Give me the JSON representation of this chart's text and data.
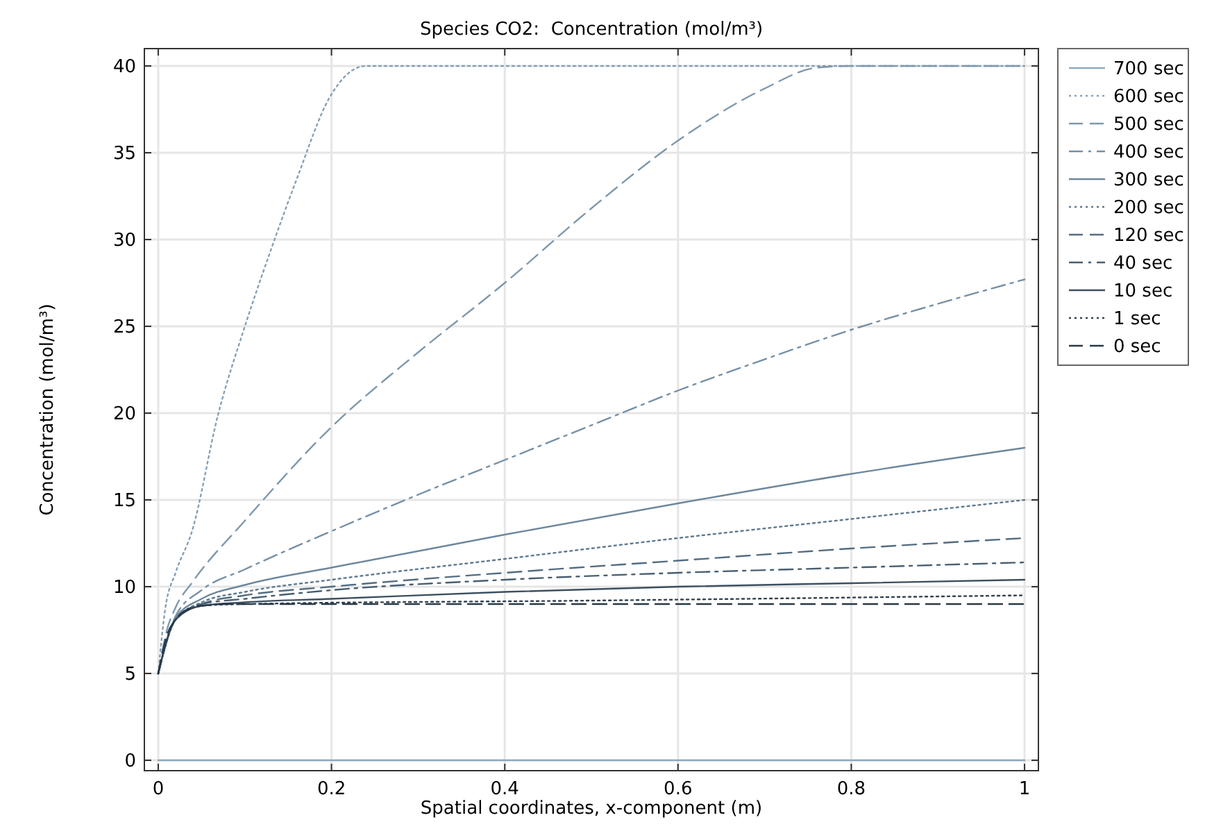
{
  "chart_data": {
    "type": "line",
    "title": "Species CO2:  Concentration (mol/m³)",
    "xlabel": "Spatial coordinates, x-component (m)",
    "ylabel": "Concentration (mol/m³)",
    "xlim": [
      -0.016,
      1.016
    ],
    "ylim": [
      -0.6,
      41
    ],
    "xticks": [
      0,
      0.2,
      0.4,
      0.6,
      0.8,
      1
    ],
    "yticks": [
      0,
      5,
      10,
      15,
      20,
      25,
      30,
      35,
      40
    ],
    "grid": true,
    "legend": "top right",
    "marker": "none",
    "series": [
      {
        "name": "700 sec",
        "color": "#8fa9bd",
        "line_style": "solid",
        "x": [
          0,
          1
        ],
        "values": [
          0,
          0
        ]
      },
      {
        "name": "600 sec",
        "color": "#86a0b5",
        "line_style": "dotted",
        "x": [
          0,
          0.008,
          0.02,
          0.039,
          0.069,
          0.1,
          0.13,
          0.16,
          0.198,
          0.22,
          0.24,
          1
        ],
        "values": [
          5,
          8.7,
          10.8,
          13.2,
          19.9,
          25,
          29.4,
          33.5,
          38.2,
          39.6,
          40,
          40
        ]
      },
      {
        "name": "500 sec",
        "color": "#7e98ad",
        "line_style": "dashed",
        "x": [
          0,
          0.01,
          0.02,
          0.04,
          0.1,
          0.2,
          0.3,
          0.4,
          0.5,
          0.6,
          0.7,
          0.76,
          0.8,
          1
        ],
        "values": [
          5,
          7.5,
          8.8,
          10.3,
          13.8,
          19.2,
          23.5,
          27.5,
          31.8,
          35.7,
          38.7,
          39.9,
          40,
          40
        ]
      },
      {
        "name": "400 sec",
        "color": "#7690a6",
        "line_style": "dashdot",
        "x": [
          0,
          0.02,
          0.05,
          0.1,
          0.2,
          0.3,
          0.4,
          0.5,
          0.6,
          0.7,
          0.8,
          0.9,
          1
        ],
        "values": [
          5,
          8.3,
          9.8,
          11,
          13.2,
          15.3,
          17.3,
          19.3,
          21.3,
          23.1,
          24.8,
          26.3,
          27.7
        ]
      },
      {
        "name": "300 sec",
        "color": "#6d879d",
        "line_style": "solid",
        "x": [
          0,
          0.02,
          0.05,
          0.1,
          0.2,
          0.4,
          0.6,
          0.8,
          1
        ],
        "values": [
          5,
          8.2,
          9.3,
          10.1,
          11.1,
          13,
          14.8,
          16.5,
          18
        ]
      },
      {
        "name": "200 sec",
        "color": "#5f788e",
        "line_style": "dotted",
        "x": [
          0,
          0.02,
          0.05,
          0.1,
          0.2,
          0.4,
          0.6,
          0.8,
          1
        ],
        "values": [
          5,
          8.1,
          9.1,
          9.7,
          10.4,
          11.6,
          12.8,
          13.9,
          15
        ]
      },
      {
        "name": "120 sec",
        "color": "#536c82",
        "line_style": "dashed",
        "x": [
          0,
          0.02,
          0.05,
          0.1,
          0.2,
          0.4,
          0.6,
          0.8,
          1
        ],
        "values": [
          5,
          8.1,
          9,
          9.5,
          10,
          10.8,
          11.5,
          12.2,
          12.8
        ]
      },
      {
        "name": "40 sec",
        "color": "#475e72",
        "line_style": "dashdot",
        "x": [
          0,
          0.02,
          0.05,
          0.1,
          0.2,
          0.4,
          0.6,
          0.8,
          1
        ],
        "values": [
          5,
          8.1,
          9,
          9.3,
          9.8,
          10.4,
          10.8,
          11.1,
          11.4
        ]
      },
      {
        "name": "10 sec",
        "color": "#3b4f61",
        "line_style": "solid",
        "x": [
          0,
          0.02,
          0.05,
          0.1,
          0.2,
          0.4,
          0.6,
          0.8,
          1
        ],
        "values": [
          5,
          8.1,
          8.9,
          9.1,
          9.3,
          9.7,
          10,
          10.2,
          10.4
        ]
      },
      {
        "name": "1 sec",
        "color": "#304252",
        "line_style": "dotted",
        "x": [
          0,
          0.02,
          0.05,
          0.1,
          0.5,
          1
        ],
        "values": [
          5,
          8.1,
          8.9,
          9,
          9.2,
          9.5
        ]
      },
      {
        "name": "0 sec",
        "color": "#283845",
        "line_style": "dashed",
        "x": [
          0,
          0.01,
          0.02,
          0.03,
          0.05,
          0.08,
          1
        ],
        "values": [
          5,
          7.2,
          8.1,
          8.6,
          8.9,
          9,
          9
        ]
      }
    ]
  }
}
